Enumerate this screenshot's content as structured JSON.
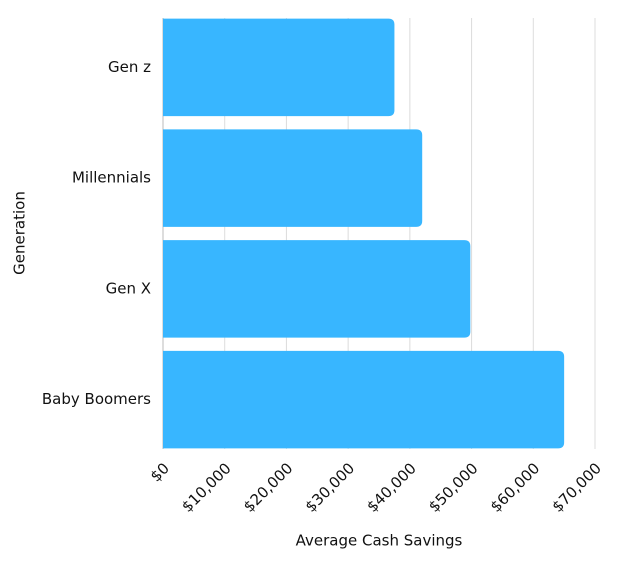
{
  "chart_data": {
    "type": "bar",
    "orientation": "horizontal",
    "categories": [
      "Gen z",
      "Millennials",
      "Gen X",
      "Baby Boomers"
    ],
    "values": [
      37500,
      42000,
      49800,
      65000
    ],
    "color": "#38b6ff",
    "xlabel": "Average Cash Savings",
    "ylabel": "Generation",
    "xlim": [
      0,
      70000
    ],
    "xticks": [
      {
        "value": 0,
        "label": "$0"
      },
      {
        "value": 10000,
        "label": "$10,000"
      },
      {
        "value": 20000,
        "label": "$20,000"
      },
      {
        "value": 30000,
        "label": "$30,000"
      },
      {
        "value": 40000,
        "label": "$40,000"
      },
      {
        "value": 50000,
        "label": "$50,000"
      },
      {
        "value": 60000,
        "label": "$60,000"
      },
      {
        "value": 70000,
        "label": "$70,000"
      }
    ],
    "grid": true
  }
}
